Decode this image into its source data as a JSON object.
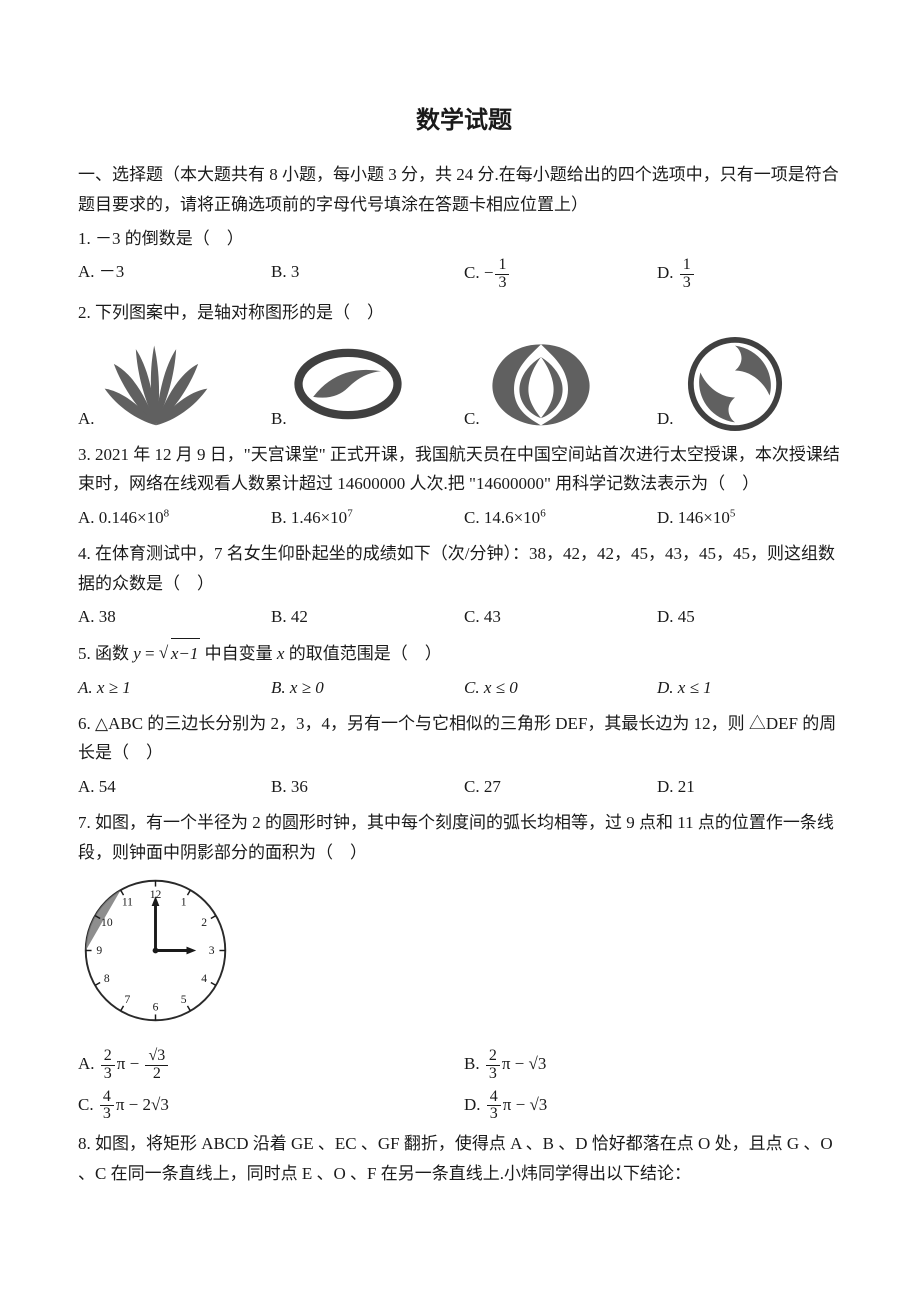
{
  "title": "数学试题",
  "section": "一、选择题（本大题共有 8 小题，每小题 3 分，共 24 分.在每小题给出的四个选项中，只有一项是符合题目要求的，请将正确选项前的字母代号填涂在答题卡相应位置上）",
  "q1": {
    "stem": "1. －3 的倒数是（　）",
    "a": "A.  －3",
    "b": "B.  3",
    "c_prefix": "C.  ",
    "c_neg": "−",
    "c_num": "1",
    "c_den": "3",
    "d_prefix": "D.  ",
    "d_num": "1",
    "d_den": "3"
  },
  "q2": {
    "stem": "2. 下列图案中，是轴对称图形的是（　）",
    "a": "A.",
    "b": "B.",
    "c": "C.",
    "d": "D."
  },
  "q3": {
    "stem": "3. 2021 年 12 月 9 日，\"天宫课堂\" 正式开课，我国航天员在中国空间站首次进行太空授课，本次授课结束时，网络在线观看人数累计超过 14600000 人次.把 \"14600000\" 用科学记数法表示为（　）",
    "a_base": "A.  0.146×10",
    "a_exp": "8",
    "b_base": "B.  1.46×10",
    "b_exp": "7",
    "c_base": "C.  14.6×10",
    "c_exp": "6",
    "d_base": "D.  146×10",
    "d_exp": "5"
  },
  "q4": {
    "stem": "4. 在体育测试中，7 名女生仰卧起坐的成绩如下（次/分钟）：38，42，42，45，43，45，45，则这组数据的众数是（　）",
    "a": "A. 38",
    "b": "B. 42",
    "c": "C. 43",
    "d": "D. 45"
  },
  "q5": {
    "stem_pre": "5. 函数 ",
    "y": "y",
    "eq": " = ",
    "rad": "x−1",
    "stem_post": " 中自变量 ",
    "x": "x",
    "stem_post2": " 的取值范围是（　）",
    "a": "A.  x ≥ 1",
    "b": "B.  x ≥ 0",
    "c": "C.  x ≤ 0",
    "d": "D.  x ≤ 1"
  },
  "q6": {
    "stem": "6. △ABC 的三边长分别为 2，3，4，另有一个与它相似的三角形 DEF，其最长边为 12，则 △DEF 的周长是（　）",
    "a": "A. 54",
    "b": "B. 36",
    "c": "C. 27",
    "d": "D. 21"
  },
  "q7": {
    "stem": "7. 如图，有一个半径为 2 的圆形时钟，其中每个刻度间的弧长均相等，过 9 点和 11 点的位置作一条线段，则钟面中阴影部分的面积为（　）",
    "a_pre": "A. ",
    "a_n1": "2",
    "a_d1": "3",
    "a_mid": "π − ",
    "a_n2": "√3",
    "a_d2": "2",
    "b_pre": "B. ",
    "b_n1": "2",
    "b_d1": "3",
    "b_mid": "π − ",
    "b_tail": "√3",
    "c_pre": "C. ",
    "c_n1": "4",
    "c_d1": "3",
    "c_mid": "π − 2",
    "c_tail": "√3",
    "d_pre": "D. ",
    "d_n1": "4",
    "d_d1": "3",
    "d_mid": "π − ",
    "d_tail": "√3"
  },
  "q8": {
    "stem": "8. 如图，将矩形 ABCD 沿着 GE 、EC 、GF 翻折，使得点 A 、B 、D 恰好都落在点 O 处，且点 G 、O 、C 在同一条直线上，同时点 E 、O 、F 在另一条直线上.小炜同学得出以下结论："
  },
  "clock": {
    "numbers": [
      "12",
      "1",
      "2",
      "3",
      "4",
      "5",
      "6",
      "7",
      "8",
      "9",
      "10",
      "11"
    ]
  },
  "colors": {
    "text": "#1a1a1a",
    "bg": "#ffffff",
    "logo_fill": "#606060",
    "logo_stroke": "#404040",
    "clock_stroke": "#2a2a2a",
    "shade": "#7a7a7a"
  }
}
